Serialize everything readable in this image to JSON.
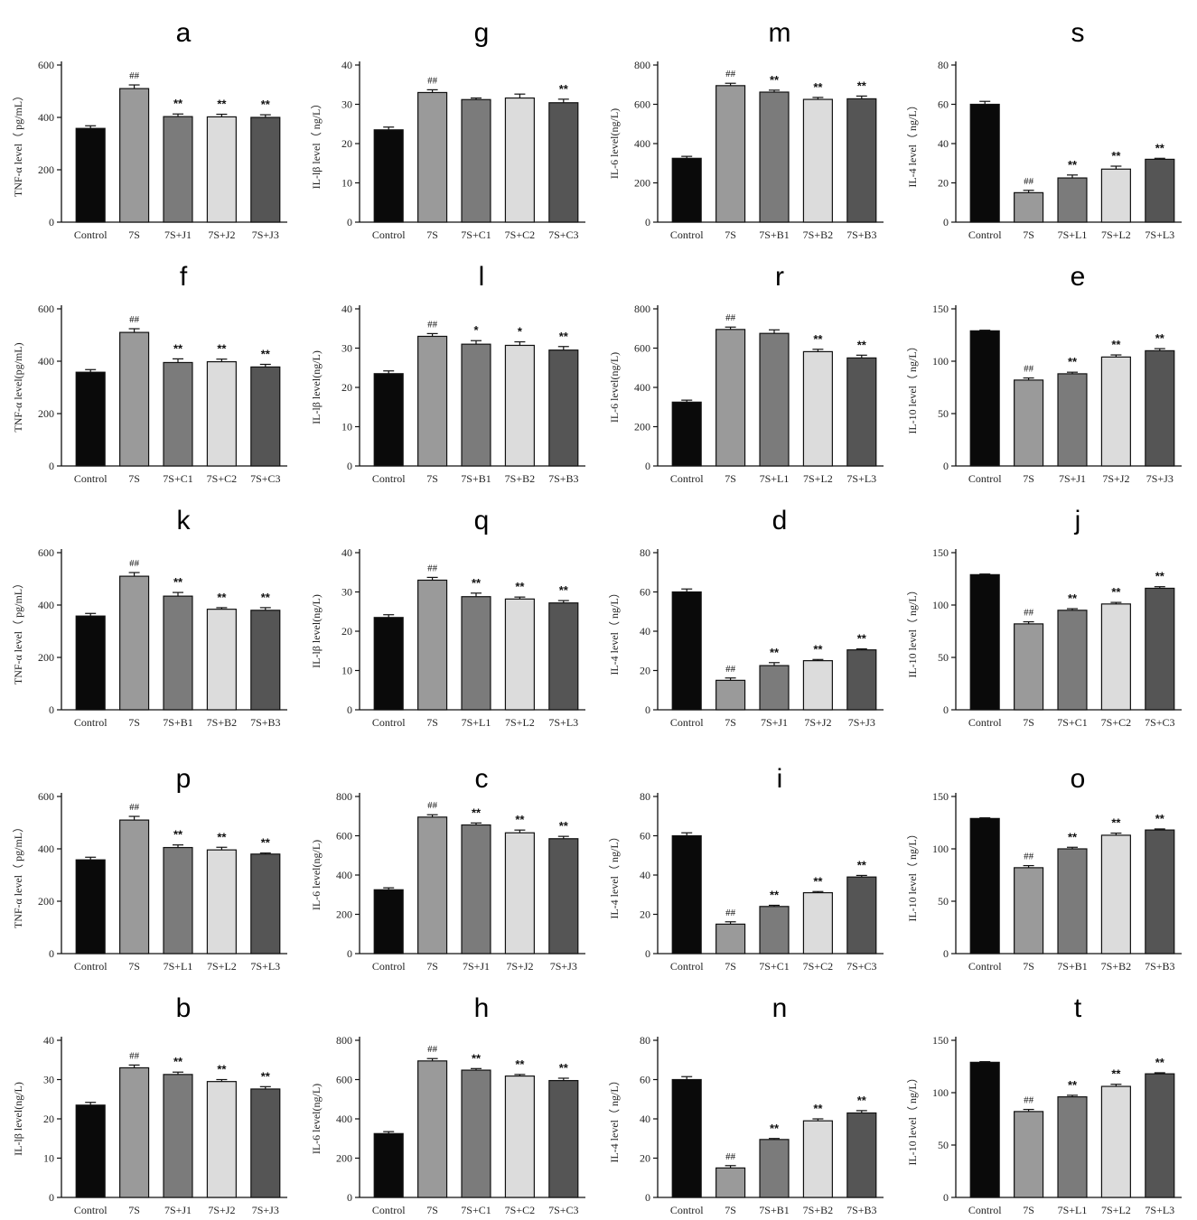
{
  "chart_data": [
    {
      "type": "bar",
      "panel": "a",
      "ylabel": "TNF-α level（ pg/mL）",
      "ylim": [
        0,
        600
      ],
      "yticks": [
        0,
        200,
        400,
        600
      ],
      "categories": [
        "Control",
        "7S",
        "7S+J1",
        "7S+J2",
        "7S+J3"
      ],
      "values": [
        358,
        510,
        403,
        402,
        400
      ],
      "errors": [
        10,
        14,
        10,
        10,
        10
      ],
      "annotations": [
        "",
        "##",
        "**",
        "**",
        "**"
      ]
    },
    {
      "type": "bar",
      "panel": "f",
      "ylabel": "TNF-α level(pg/mL)",
      "ylim": [
        0,
        600
      ],
      "yticks": [
        0,
        200,
        400,
        600
      ],
      "categories": [
        "Control",
        "7S",
        "7S+C1",
        "7S+C2",
        "7S+C3"
      ],
      "values": [
        358,
        510,
        395,
        398,
        378
      ],
      "errors": [
        10,
        14,
        14,
        10,
        10
      ],
      "annotations": [
        "",
        "##",
        "**",
        "**",
        "**"
      ]
    },
    {
      "type": "bar",
      "panel": "k",
      "ylabel": "TNF-α level（ pg/mL）",
      "ylim": [
        0,
        600
      ],
      "yticks": [
        0,
        200,
        400,
        600
      ],
      "categories": [
        "Control",
        "7S",
        "7S+B1",
        "7S+B2",
        "7S+B3"
      ],
      "values": [
        358,
        510,
        434,
        384,
        380
      ],
      "errors": [
        10,
        14,
        14,
        6,
        10
      ],
      "annotations": [
        "",
        "##",
        "**",
        "**",
        "**"
      ]
    },
    {
      "type": "bar",
      "panel": "p",
      "ylabel": "TNF-α level（ pg/mL）",
      "ylim": [
        0,
        600
      ],
      "yticks": [
        0,
        200,
        400,
        600
      ],
      "categories": [
        "Control",
        "7S",
        "7S+L1",
        "7S+L2",
        "7S+L3"
      ],
      "values": [
        358,
        510,
        405,
        396,
        380
      ],
      "errors": [
        10,
        14,
        10,
        10,
        4
      ],
      "annotations": [
        "",
        "##",
        "**",
        "**",
        "**"
      ]
    },
    {
      "type": "bar",
      "panel": "b",
      "ylabel": "IL-lβ level(ng/L)",
      "ylim": [
        0,
        40
      ],
      "yticks": [
        0,
        10,
        20,
        30,
        40
      ],
      "categories": [
        "Control",
        "7S",
        "7S+J1",
        "7S+J2",
        "7S+J3"
      ],
      "values": [
        23.5,
        33,
        31.3,
        29.5,
        27.6
      ],
      "errors": [
        0.7,
        0.7,
        0.6,
        0.5,
        0.6
      ],
      "annotations": [
        "",
        "##",
        "**",
        "**",
        "**"
      ]
    },
    {
      "type": "bar",
      "panel": "g",
      "ylabel": "IL-lβ level（ ng/L）",
      "ylim": [
        0,
        40
      ],
      "yticks": [
        0,
        10,
        20,
        30,
        40
      ],
      "categories": [
        "Control",
        "7S",
        "7S+C1",
        "7S+C2",
        "7S+C3"
      ],
      "values": [
        23.5,
        33,
        31.2,
        31.6,
        30.4
      ],
      "errors": [
        0.7,
        0.7,
        0.4,
        1,
        0.9
      ],
      "annotations": [
        "",
        "##",
        "",
        "",
        "**"
      ]
    },
    {
      "type": "bar",
      "panel": "l",
      "ylabel": "IL-lβ level(ng/L)",
      "ylim": [
        0,
        40
      ],
      "yticks": [
        0,
        10,
        20,
        30,
        40
      ],
      "categories": [
        "Control",
        "7S",
        "7S+B1",
        "7S+B2",
        "7S+B3"
      ],
      "values": [
        23.5,
        33,
        31,
        30.7,
        29.5
      ],
      "errors": [
        0.7,
        0.7,
        0.9,
        0.9,
        0.9
      ],
      "annotations": [
        "",
        "##",
        "*",
        "*",
        "**"
      ]
    },
    {
      "type": "bar",
      "panel": "q",
      "ylabel": "IL-lβ level(ng/L)",
      "ylim": [
        0,
        40
      ],
      "yticks": [
        0,
        10,
        20,
        30,
        40
      ],
      "categories": [
        "Control",
        "7S",
        "7S+L1",
        "7S+L2",
        "7S+L3"
      ],
      "values": [
        23.5,
        33,
        28.8,
        28.2,
        27.2
      ],
      "errors": [
        0.7,
        0.7,
        0.9,
        0.5,
        0.6
      ],
      "annotations": [
        "",
        "##",
        "**",
        "**",
        "**"
      ]
    },
    {
      "type": "bar",
      "panel": "c",
      "ylabel": "IL-6 level(ng/L)",
      "ylim": [
        0,
        800
      ],
      "yticks": [
        0,
        200,
        400,
        600,
        800
      ],
      "categories": [
        "Control",
        "7S",
        "7S+J1",
        "7S+J2",
        "7S+J3"
      ],
      "values": [
        325,
        695,
        655,
        615,
        585
      ],
      "errors": [
        10,
        12,
        10,
        14,
        12
      ],
      "annotations": [
        "",
        "##",
        "**",
        "**",
        "**"
      ]
    },
    {
      "type": "bar",
      "panel": "h",
      "ylabel": "IL-6 level(ng/L)",
      "ylim": [
        0,
        800
      ],
      "yticks": [
        0,
        200,
        400,
        600,
        800
      ],
      "categories": [
        "Control",
        "7S",
        "7S+C1",
        "7S+C2",
        "7S+C3"
      ],
      "values": [
        325,
        695,
        648,
        618,
        595
      ],
      "errors": [
        10,
        12,
        8,
        8,
        12
      ],
      "annotations": [
        "",
        "##",
        "**",
        "**",
        "**"
      ]
    },
    {
      "type": "bar",
      "panel": "m",
      "ylabel": "IL-6 level(ng/L)",
      "ylim": [
        0,
        800
      ],
      "yticks": [
        0,
        200,
        400,
        600,
        800
      ],
      "categories": [
        "Control",
        "7S",
        "7S+B1",
        "7S+B2",
        "7S+B3"
      ],
      "values": [
        325,
        695,
        662,
        625,
        628
      ],
      "errors": [
        10,
        12,
        10,
        10,
        14
      ],
      "annotations": [
        "",
        "##",
        "**",
        "**",
        "**"
      ]
    },
    {
      "type": "bar",
      "panel": "r",
      "ylabel": "IL-6 level(ng/L)",
      "ylim": [
        0,
        800
      ],
      "yticks": [
        0,
        200,
        400,
        600,
        800
      ],
      "categories": [
        "Control",
        "7S",
        "7S+L1",
        "7S+L2",
        "7S+L3"
      ],
      "values": [
        325,
        695,
        675,
        582,
        550
      ],
      "errors": [
        10,
        12,
        18,
        12,
        14
      ],
      "annotations": [
        "",
        "##",
        "",
        "**",
        "**"
      ]
    },
    {
      "type": "bar",
      "panel": "d",
      "ylabel": "IL-4 level（ ng/L）",
      "ylim": [
        0,
        80
      ],
      "yticks": [
        0,
        20,
        40,
        60,
        80
      ],
      "categories": [
        "Control",
        "7S",
        "7S+J1",
        "7S+J2",
        "7S+J3"
      ],
      "values": [
        60,
        15,
        22.5,
        25,
        30.5
      ],
      "errors": [
        1.5,
        1.2,
        1.5,
        0.6,
        0.5
      ],
      "annotations": [
        "",
        "##",
        "**",
        "**",
        "**"
      ]
    },
    {
      "type": "bar",
      "panel": "i",
      "ylabel": "IL-4 level（ ng/L）",
      "ylim": [
        0,
        80
      ],
      "yticks": [
        0,
        20,
        40,
        60,
        80
      ],
      "categories": [
        "Control",
        "7S",
        "7S+C1",
        "7S+C2",
        "7S+C3"
      ],
      "values": [
        60,
        15,
        24,
        31,
        39
      ],
      "errors": [
        1.5,
        1.2,
        0.6,
        0.6,
        0.8
      ],
      "annotations": [
        "",
        "##",
        "**",
        "**",
        "**"
      ]
    },
    {
      "type": "bar",
      "panel": "n",
      "ylabel": "IL-4 level（ ng/L）",
      "ylim": [
        0,
        80
      ],
      "yticks": [
        0,
        20,
        40,
        60,
        80
      ],
      "categories": [
        "Control",
        "7S",
        "7S+B1",
        "7S+B2",
        "7S+B3"
      ],
      "values": [
        60,
        15,
        29.5,
        39,
        43
      ],
      "errors": [
        1.5,
        1.2,
        0.5,
        1,
        1.2
      ],
      "annotations": [
        "",
        "##",
        "**",
        "**",
        "**"
      ]
    },
    {
      "type": "bar",
      "panel": "s",
      "ylabel": "IL-4 level（ ng/L）",
      "ylim": [
        0,
        80
      ],
      "yticks": [
        0,
        20,
        40,
        60,
        80
      ],
      "categories": [
        "Control",
        "7S",
        "7S+L1",
        "7S+L2",
        "7S+L3"
      ],
      "values": [
        60,
        15,
        22.5,
        27,
        32
      ],
      "errors": [
        1.5,
        1.2,
        1.5,
        1.5,
        0.5
      ],
      "annotations": [
        "",
        "##",
        "**",
        "**",
        "**"
      ]
    },
    {
      "type": "bar",
      "panel": "e",
      "ylabel": "IL-10 level（ ng/L）",
      "ylim": [
        0,
        150
      ],
      "yticks": [
        0,
        50,
        100,
        150
      ],
      "categories": [
        "Control",
        "7S",
        "7S+J1",
        "7S+J2",
        "7S+J3"
      ],
      "values": [
        129,
        82,
        88,
        104,
        110
      ],
      "errors": [
        0.6,
        2,
        1.5,
        2,
        2
      ],
      "annotations": [
        "",
        "##",
        "**",
        "**",
        "**"
      ]
    },
    {
      "type": "bar",
      "panel": "j",
      "ylabel": "IL-10 level（ ng/L）",
      "ylim": [
        0,
        150
      ],
      "yticks": [
        0,
        50,
        100,
        150
      ],
      "categories": [
        "Control",
        "7S",
        "7S+C1",
        "7S+C2",
        "7S+C3"
      ],
      "values": [
        129,
        82,
        95,
        101,
        116
      ],
      "errors": [
        0.6,
        2,
        1.5,
        1.5,
        1.5
      ],
      "annotations": [
        "",
        "##",
        "**",
        "**",
        "**"
      ]
    },
    {
      "type": "bar",
      "panel": "o",
      "ylabel": "IL-10 level（ ng/L）",
      "ylim": [
        0,
        150
      ],
      "yticks": [
        0,
        50,
        100,
        150
      ],
      "categories": [
        "Control",
        "7S",
        "7S+B1",
        "7S+B2",
        "7S+B3"
      ],
      "values": [
        129,
        82,
        100,
        113,
        118
      ],
      "errors": [
        0.6,
        2,
        1.5,
        2,
        1
      ],
      "annotations": [
        "",
        "##",
        "**",
        "**",
        "**"
      ]
    },
    {
      "type": "bar",
      "panel": "t",
      "ylabel": "IL-10 level（ ng/L）",
      "ylim": [
        0,
        150
      ],
      "yticks": [
        0,
        50,
        100,
        150
      ],
      "categories": [
        "Control",
        "7S",
        "7S+L1",
        "7S+L2",
        "7S+L3"
      ],
      "values": [
        129,
        82,
        96,
        106,
        118
      ],
      "errors": [
        0.6,
        2,
        1.5,
        2,
        1
      ],
      "annotations": [
        "",
        "##",
        "**",
        "**",
        "**"
      ]
    }
  ],
  "bar_colors": [
    "#0a0a0a",
    "#9a9a9a",
    "#7b7b7b",
    "#dcdcdc",
    "#555555"
  ]
}
